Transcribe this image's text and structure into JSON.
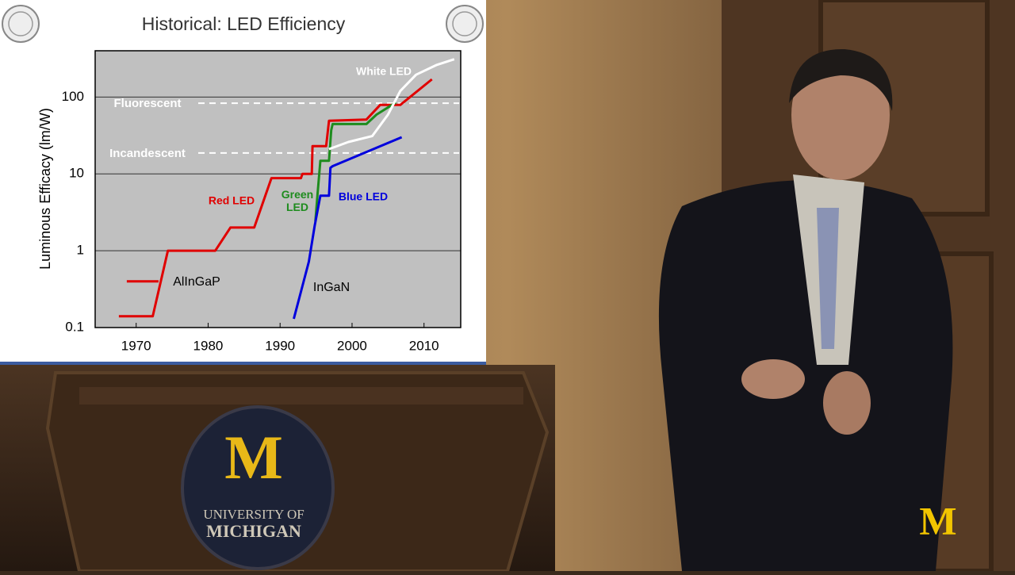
{
  "chart_data": {
    "type": "line",
    "title": "Historical: LED Efficiency",
    "y_label": "Luminous Efficacy (lm/W)",
    "y_scale": "log",
    "xlim": [
      1964.3,
      2015.1
    ],
    "xticks": [
      1970,
      1980,
      1990,
      2000,
      2010
    ],
    "ylim": [
      0.1,
      400
    ],
    "yticks": [
      0.1,
      1,
      10,
      100
    ],
    "grid": true,
    "series": [
      {
        "name": "Red LED",
        "color": "#e00000",
        "x": [
          1968.7,
          1973.1,
          null,
          1967.6,
          1972.3,
          1974.4,
          1981.0,
          1983.1,
          1986.4,
          1988.8,
          1992.9,
          1993.1,
          1994.4,
          1994.5,
          1996.4,
          1996.8,
          2002.0,
          2003.9,
          2006.7,
          2011.1
        ],
        "values": [
          0.4,
          0.4,
          null,
          0.14,
          0.14,
          1,
          1,
          2,
          2,
          8.8,
          8.8,
          10,
          10,
          23,
          23,
          49,
          51,
          79,
          79,
          170
        ]
      },
      {
        "name": "Green LED",
        "color": "#1e8c1e",
        "x": [
          1994.9,
          1995.2,
          1995.6,
          1996.8,
          1997.1,
          1997.3,
          2002.0,
          2003.4,
          2006.1
        ],
        "values": [
          2.4,
          5.4,
          14.8,
          14.8,
          37,
          44.5,
          44.5,
          59,
          85
        ]
      },
      {
        "name": "Blue LED",
        "color": "#0000dd",
        "x": [
          1991.9,
          1994.0,
          1994.8,
          1995.6,
          1996.8,
          1997.0,
          1997.3,
          2006.9
        ],
        "values": [
          0.13,
          0.72,
          2.1,
          5.2,
          5.2,
          12,
          12.6,
          30
        ]
      },
      {
        "name": "White LED",
        "color": "#ffffff",
        "x": [
          1996.8,
          1999.5,
          2002.8,
          2005.0,
          2006.7,
          2008.9,
          2011.7,
          2014.2
        ],
        "values": [
          21,
          26,
          31,
          59,
          120,
          195,
          260,
          310
        ]
      }
    ],
    "reference_lines": [
      {
        "label": "Fluorescent",
        "value": 83
      },
      {
        "label": "Incandescent",
        "value": 18.7
      }
    ],
    "annotations": [
      "AlInGaP",
      "InGaN"
    ]
  },
  "scene": {
    "podium_logo": "M",
    "podium_text_1": "UNIVERSITY OF",
    "podium_text_2": "MICHIGAN",
    "corner_logo": "M"
  }
}
